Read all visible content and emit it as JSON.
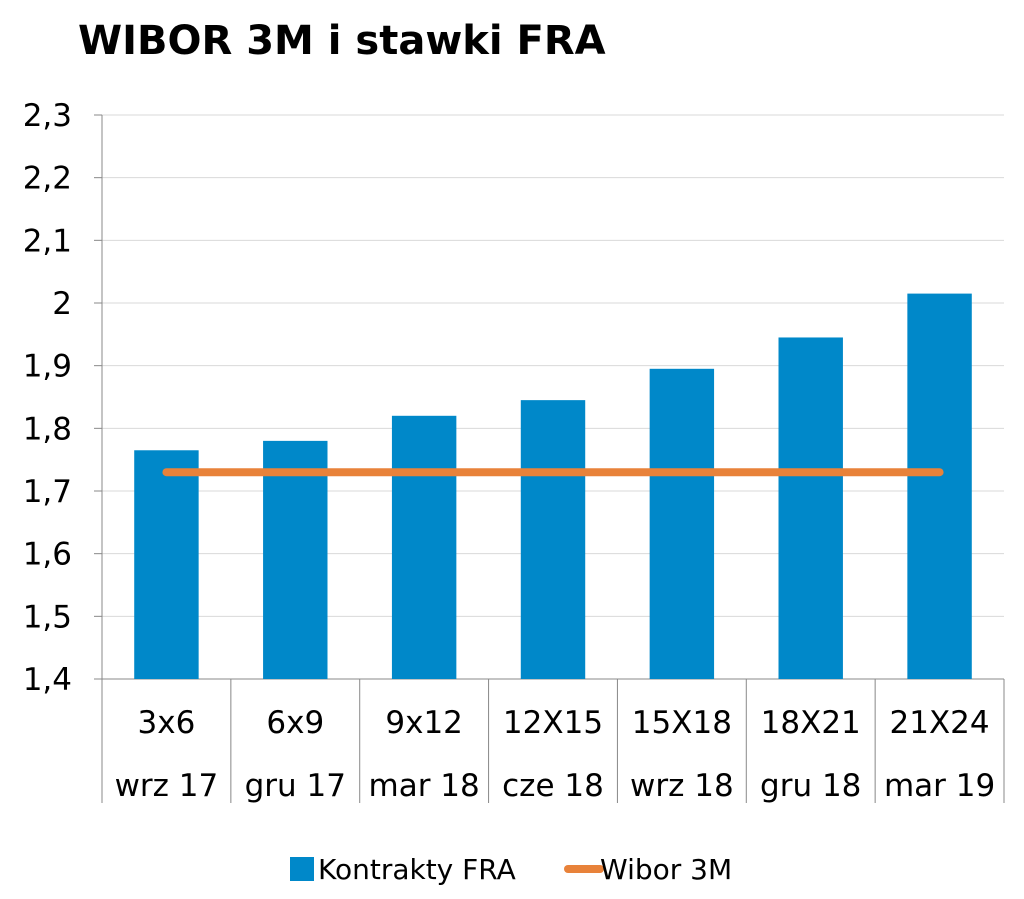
{
  "chart_data": {
    "type": "bar",
    "title": "WIBOR 3M i stawki FRA",
    "categories": [
      [
        "3x6",
        "wrz 17"
      ],
      [
        "6x9",
        "gru 17"
      ],
      [
        "9x12",
        "mar 18"
      ],
      [
        "12X15",
        "cze 18"
      ],
      [
        "15X18",
        "wrz 18"
      ],
      [
        "18X21",
        "gru 18"
      ],
      [
        "21X24",
        "mar 19"
      ]
    ],
    "series": [
      {
        "name": "Kontrakty FRA",
        "kind": "bar",
        "color": "#0088c9",
        "values": [
          1.765,
          1.78,
          1.82,
          1.845,
          1.895,
          1.945,
          2.015
        ]
      },
      {
        "name": "Wibor 3M",
        "kind": "line",
        "color": "#e8823a",
        "values": [
          1.73,
          1.73,
          1.73,
          1.73,
          1.73,
          1.73,
          1.73
        ]
      }
    ],
    "ylim": [
      1.4,
      2.3
    ],
    "yticks": [
      1.4,
      1.5,
      1.6,
      1.7,
      1.8,
      1.9,
      2.0,
      2.1,
      2.2,
      2.3
    ],
    "ytick_labels": [
      "1,4",
      "1,5",
      "1,6",
      "1,7",
      "1,8",
      "1,9",
      "2",
      "2,1",
      "2,2",
      "2,3"
    ],
    "xlabel": "",
    "ylabel": "",
    "grid": true,
    "legend_position": "bottom"
  }
}
